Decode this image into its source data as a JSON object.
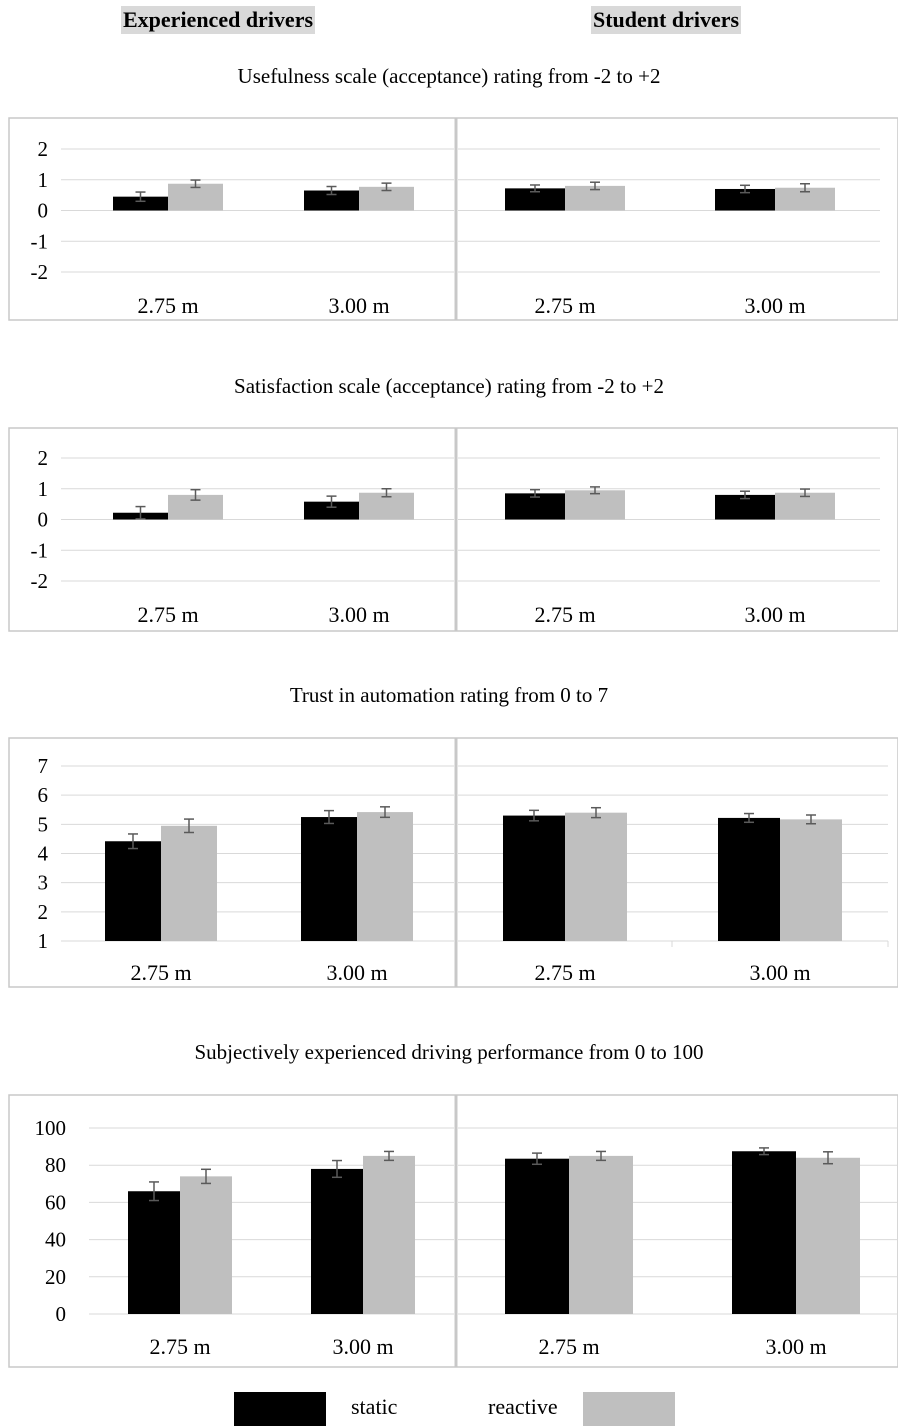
{
  "headers": {
    "experienced": "Experienced drivers",
    "student": "Student drivers"
  },
  "colors": {
    "static": "#000000",
    "reactive": "#bfbfbf",
    "grid": "#d9d9d9",
    "frame": "#c8c8c8",
    "header_bg": "#d9d9d9"
  },
  "legend": {
    "static": "static",
    "reactive": "reactive"
  },
  "chart_data": [
    {
      "type": "bar",
      "title": "Usefulness scale (acceptance) rating from -2 to +2",
      "ylim": [
        -2,
        2
      ],
      "yticks": [
        "2",
        "1",
        "0",
        "-1",
        "-2"
      ],
      "groups": [
        "Experienced drivers",
        "Student drivers"
      ],
      "categories": [
        "2.75 m",
        "3.00 m"
      ],
      "series": [
        {
          "name": "static",
          "values": [
            [
              0.45,
              0.65
            ],
            [
              0.72,
              0.7
            ]
          ],
          "errors": [
            [
              0.15,
              0.13
            ],
            [
              0.11,
              0.12
            ]
          ]
        },
        {
          "name": "reactive",
          "values": [
            [
              0.87,
              0.77
            ],
            [
              0.8,
              0.74
            ]
          ],
          "errors": [
            [
              0.12,
              0.12
            ],
            [
              0.12,
              0.13
            ]
          ]
        }
      ]
    },
    {
      "type": "bar",
      "title": "Satisfaction scale (acceptance) rating from -2 to +2",
      "ylim": [
        -2,
        2
      ],
      "yticks": [
        "2",
        "1",
        "0",
        "-1",
        "-2"
      ],
      "groups": [
        "Experienced drivers",
        "Student drivers"
      ],
      "categories": [
        "2.75 m",
        "3.00 m"
      ],
      "series": [
        {
          "name": "static",
          "values": [
            [
              0.22,
              0.58
            ],
            [
              0.85,
              0.8
            ]
          ],
          "errors": [
            [
              0.2,
              0.18
            ],
            [
              0.12,
              0.12
            ]
          ]
        },
        {
          "name": "reactive",
          "values": [
            [
              0.8,
              0.87
            ],
            [
              0.95,
              0.87
            ]
          ],
          "errors": [
            [
              0.17,
              0.13
            ],
            [
              0.11,
              0.12
            ]
          ]
        }
      ]
    },
    {
      "type": "bar",
      "title": "Trust in automation rating from 0 to 7",
      "ylim": [
        1,
        7
      ],
      "yticks": [
        "7",
        "6",
        "5",
        "4",
        "3",
        "2",
        "1"
      ],
      "groups": [
        "Experienced drivers",
        "Student drivers"
      ],
      "categories": [
        "2.75 m",
        "3.00 m"
      ],
      "series": [
        {
          "name": "static",
          "values": [
            [
              4.42,
              5.25
            ],
            [
              5.3,
              5.22
            ]
          ],
          "errors": [
            [
              0.25,
              0.22
            ],
            [
              0.18,
              0.15
            ]
          ]
        },
        {
          "name": "reactive",
          "values": [
            [
              4.95,
              5.42
            ],
            [
              5.4,
              5.17
            ]
          ],
          "errors": [
            [
              0.23,
              0.18
            ],
            [
              0.17,
              0.15
            ]
          ]
        }
      ]
    },
    {
      "type": "bar",
      "title": "Subjectively experienced driving performance from 0 to 100",
      "ylim": [
        0,
        100
      ],
      "yticks": [
        "100",
        "80",
        "60",
        "40",
        "20",
        "0"
      ],
      "groups": [
        "Experienced drivers",
        "Student drivers"
      ],
      "categories": [
        "2.75 m",
        "3.00 m"
      ],
      "series": [
        {
          "name": "static",
          "values": [
            [
              66,
              78
            ],
            [
              83.5,
              87.5
            ]
          ],
          "errors": [
            [
              5,
              4.5
            ],
            [
              3,
              1.8
            ]
          ]
        },
        {
          "name": "reactive",
          "values": [
            [
              74,
              85
            ],
            [
              85,
              84
            ]
          ],
          "errors": [
            [
              3.8,
              2.4
            ],
            [
              2.4,
              3.2
            ]
          ]
        }
      ]
    }
  ]
}
